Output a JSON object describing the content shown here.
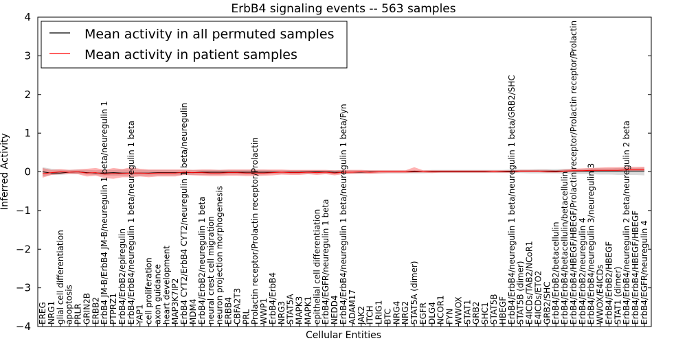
{
  "chart_data": {
    "type": "line",
    "title": "ErbB4 signaling events -- 563 samples",
    "xlabel": "Cellular Entities",
    "ylabel": "Inferred Activity",
    "ylim": [
      -4,
      4
    ],
    "yticks": [
      -4,
      -3,
      -2,
      -1,
      0,
      1,
      2,
      3,
      4
    ],
    "ytick_labels": [
      "−4",
      "−3",
      "−2",
      "−1",
      "0",
      "1",
      "2",
      "3",
      "4"
    ],
    "grid": false,
    "legend_position": "top-left",
    "categories": [
      "EREG",
      "NRG1",
      "glial cell differentiation",
      "apoptosis",
      "PRLR",
      "GRIN2B",
      "ERBB2",
      "ErbB4 JM-B/ErbB4 JM-B/neuregulin 1 beta/neuregulin 1",
      "PTPRZ1",
      "ErbB4/ErbB2/epiregulin",
      "ErbB4/ErbB4/neuregulin 1 beta/neuregulin 1 beta",
      "YAP1",
      "cell proliferation",
      "axon guidance",
      "heart development",
      "MAP3K7IP2",
      "ErbB4 CYT2/ErbB4 CYT2/neuregulin 1 beta/neuregulin",
      "MDM4",
      "ErbB4/ErbB2/neuregulin 1 beta",
      "neural crest cell migration",
      "neuron projection morphogenesis",
      "ERBB4",
      "CBFA2T3",
      "PRL",
      "Prolactin receptor/Prolactin receptor/Prolactin",
      "WWP1",
      "ErbB4/ErbB4",
      "NRG3",
      "STAT5A",
      "MAPK3",
      "MAPK1",
      "epithelial cell differentiation",
      "ErbB4/EGFR/neuregulin 1 beta",
      "NEDD4",
      "ErbB4/ErbB4/neuregulin 1 beta/neuregulin 1 beta/Fyn",
      "ADAM17",
      "JAK2",
      "ITCH",
      "LRIG1",
      "BTC",
      "NRG4",
      "NRG2",
      "STAT5A (dimer)",
      "EGFR",
      "DLG4",
      "NCOR1",
      "FYN",
      "WWOX",
      "STAT1",
      "GRB2",
      "SHC1",
      "STAT5B",
      "HBEGF",
      "ErbB4/ErbB4/neuregulin 1 beta/neuregulin 1 beta/GRB2/SHC",
      "STAT5B (dimer)",
      "E4ICDs/TAB2/NCoR1",
      "E4ICDs/ETO2",
      "GRB2/SHC",
      "ErbB4/ErbB2/betacellulin",
      "ErbB4/ErbB4/betacellulin/betacellulin",
      "ErbB4/ErbB4/HBEGF/HBEGF/Prolactin receptor/Prolactin receptor/Prolactin",
      "ErbB4/ErbB2/neuregulin 4",
      "ErbB4/ErbB4/neuregulin 3/neuregulin 3",
      "WWOX/E4ICDs",
      "ErbB4/ErbB2/HBEGF",
      "STAT1 (dimer)",
      "ErbB4/ErbB4/neuregulin 2 beta/neuregulin 2 beta",
      "ErbB4/ErbB4/HBEGF/HBEGF",
      "ErbB4/EGFR/neuregulin 4"
    ],
    "series": [
      {
        "name": "Mean activity in all permuted samples",
        "color": "#000000",
        "values": [
          0,
          -0.03,
          -0.03,
          -0.01,
          0,
          -0.02,
          -0.03,
          -0.03,
          -0.02,
          -0.03,
          -0.03,
          -0.03,
          -0.03,
          -0.02,
          -0.02,
          -0.02,
          -0.02,
          -0.02,
          -0.01,
          -0.01,
          -0.01,
          -0.01,
          -0.01,
          -0.01,
          -0.01,
          -0.01,
          -0.01,
          -0.01,
          -0.01,
          -0.01,
          0,
          0,
          0,
          -0.01,
          -0.01,
          -0.01,
          -0.01,
          0,
          0,
          0,
          0,
          0,
          0,
          0.01,
          0.01,
          0.01,
          0.01,
          0.01,
          0.01,
          0.01,
          0.01,
          0.01,
          0.01,
          0.02,
          0.02,
          0.02,
          0.02,
          0.02,
          0.02,
          0.02,
          0.02,
          0.02,
          0.02,
          0.02,
          0.02,
          0.02,
          0.02,
          0.02,
          0.02
        ],
        "lower": [
          -0.12,
          -0.08,
          -0.08,
          -0.06,
          -0.06,
          -0.07,
          -0.08,
          -0.1,
          -0.1,
          -0.1,
          -0.1,
          -0.1,
          -0.1,
          -0.09,
          -0.09,
          -0.09,
          -0.08,
          -0.08,
          -0.08,
          -0.08,
          -0.08,
          -0.07,
          -0.07,
          -0.07,
          -0.07,
          -0.07,
          -0.06,
          -0.06,
          -0.06,
          -0.06,
          -0.06,
          -0.05,
          -0.05,
          -0.06,
          -0.06,
          -0.05,
          -0.05,
          -0.04,
          -0.04,
          -0.04,
          -0.04,
          -0.04,
          -0.04,
          -0.04,
          -0.03,
          -0.03,
          -0.03,
          -0.03,
          -0.03,
          -0.03,
          -0.03,
          -0.03,
          -0.03,
          -0.03,
          -0.03,
          -0.04,
          -0.04,
          -0.04,
          -0.04,
          -0.05,
          -0.06,
          -0.06,
          -0.06,
          -0.07,
          -0.07,
          -0.08,
          -0.08,
          -0.08,
          -0.09
        ],
        "upper": [
          0.12,
          0.08,
          0.05,
          0.05,
          0.06,
          0.05,
          0.04,
          0.05,
          0.05,
          0.06,
          0.06,
          0.05,
          0.05,
          0.05,
          0.05,
          0.05,
          0.05,
          0.05,
          0.05,
          0.05,
          0.05,
          0.05,
          0.05,
          0.05,
          0.05,
          0.05,
          0.04,
          0.04,
          0.04,
          0.04,
          0.04,
          0.04,
          0.04,
          0.04,
          0.04,
          0.04,
          0.04,
          0.04,
          0.04,
          0.04,
          0.04,
          0.04,
          0.04,
          0.04,
          0.05,
          0.05,
          0.05,
          0.05,
          0.05,
          0.05,
          0.05,
          0.05,
          0.05,
          0.06,
          0.06,
          0.06,
          0.07,
          0.07,
          0.07,
          0.08,
          0.08,
          0.08,
          0.09,
          0.09,
          0.09,
          0.1,
          0.1,
          0.1,
          0.11
        ]
      },
      {
        "name": "Mean activity in patient samples",
        "color": "#ff0000",
        "values": [
          -0.05,
          -0.02,
          0,
          -0.01,
          0,
          -0.03,
          -0.02,
          -0.06,
          -0.05,
          -0.04,
          -0.03,
          -0.03,
          -0.04,
          -0.03,
          -0.03,
          -0.03,
          -0.01,
          -0.02,
          -0.02,
          -0.03,
          -0.03,
          -0.02,
          -0.02,
          -0.03,
          -0.03,
          -0.03,
          -0.02,
          -0.01,
          -0.02,
          -0.02,
          -0.01,
          -0.02,
          -0.01,
          -0.03,
          -0.01,
          -0.01,
          0,
          -0.01,
          0,
          0,
          0,
          0,
          0.02,
          0.01,
          0,
          0,
          0,
          0,
          0,
          0,
          0,
          0.01,
          0,
          0,
          0.02,
          0.02,
          0.02,
          0.01,
          0,
          0.02,
          0.03,
          0.03,
          0.04,
          0.04,
          0.04,
          0.04,
          0.05,
          0.05,
          0.05
        ],
        "lower": [
          -0.15,
          -0.08,
          -0.06,
          -0.05,
          -0.06,
          -0.12,
          -0.1,
          -0.16,
          -0.18,
          -0.14,
          -0.14,
          -0.12,
          -0.14,
          -0.12,
          -0.12,
          -0.12,
          -0.08,
          -0.09,
          -0.1,
          -0.11,
          -0.11,
          -0.1,
          -0.1,
          -0.11,
          -0.11,
          -0.1,
          -0.09,
          -0.07,
          -0.08,
          -0.08,
          -0.06,
          -0.08,
          -0.06,
          -0.09,
          -0.06,
          -0.05,
          -0.04,
          -0.05,
          -0.04,
          -0.03,
          -0.03,
          -0.03,
          -0.02,
          -0.02,
          -0.03,
          -0.02,
          -0.02,
          -0.02,
          -0.02,
          -0.02,
          -0.02,
          -0.02,
          -0.02,
          -0.02,
          -0.01,
          -0.01,
          -0.01,
          -0.02,
          -0.02,
          -0.01,
          0,
          0,
          0.01,
          0.01,
          0.01,
          0.01,
          0.02,
          0.02,
          0.02
        ],
        "upper": [
          0.1,
          0.05,
          0.07,
          0.05,
          0.06,
          0.08,
          0.1,
          0.05,
          0.1,
          0.07,
          0.12,
          0.08,
          0.06,
          0.06,
          0.06,
          0.06,
          0.06,
          0.05,
          0.06,
          0.06,
          0.05,
          0.06,
          0.06,
          0.06,
          0.06,
          0.06,
          0.06,
          0.06,
          0.05,
          0.05,
          0.05,
          0.05,
          0.05,
          0.04,
          0.05,
          0.05,
          0.05,
          0.04,
          0.04,
          0.04,
          0.04,
          0.04,
          0.12,
          0.04,
          0.04,
          0.04,
          0.04,
          0.04,
          0.04,
          0.04,
          0.04,
          0.04,
          0.04,
          0.04,
          0.05,
          0.05,
          0.05,
          0.05,
          0.04,
          0.06,
          0.08,
          0.09,
          0.1,
          0.11,
          0.12,
          0.12,
          0.13,
          0.13,
          0.13
        ]
      }
    ]
  }
}
